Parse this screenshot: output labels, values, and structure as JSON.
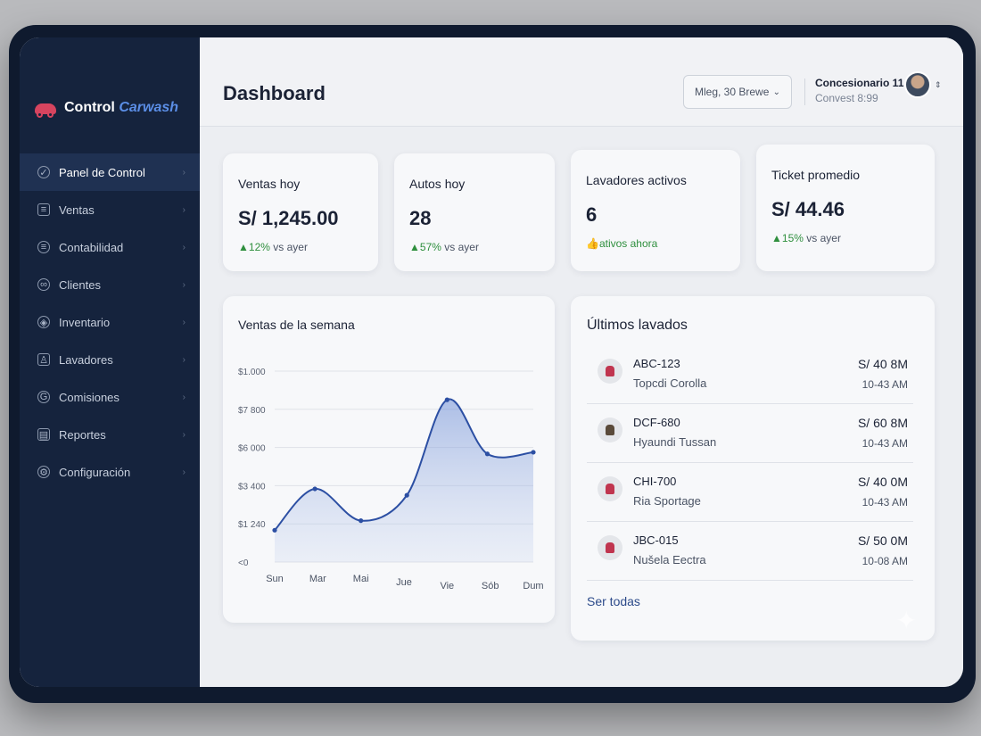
{
  "brand": {
    "name_part1": "Control",
    "name_part2": "Carwash"
  },
  "sidebar": {
    "items": [
      {
        "label": "Panel de Control",
        "icon": "dashboard-icon",
        "glyph": "✓",
        "active": true
      },
      {
        "label": "Ventas",
        "icon": "receipt-icon",
        "glyph": "≡"
      },
      {
        "label": "Contabilidad",
        "icon": "database-icon",
        "glyph": "≡"
      },
      {
        "label": "Clientes",
        "icon": "users-icon",
        "glyph": "∞"
      },
      {
        "label": "Inventario",
        "icon": "box-icon",
        "glyph": "◈"
      },
      {
        "label": "Lavadores",
        "icon": "worker-icon",
        "glyph": "♙"
      },
      {
        "label": "Comisiones",
        "icon": "commission-icon",
        "glyph": "G"
      },
      {
        "label": "Reportes",
        "icon": "report-icon",
        "glyph": "▤"
      },
      {
        "label": "Configuración",
        "icon": "gear-icon",
        "glyph": "⚙"
      }
    ]
  },
  "header": {
    "title": "Dashboard",
    "select_value": "Mleg, 30 Brewe",
    "user_name": "Concesionario 11",
    "user_sub": "Convest 8:99"
  },
  "kpis": [
    {
      "label": "Ventas hoy",
      "value": "S/ 1,245.00",
      "delta_value": "12%",
      "delta_text": " vs ayer",
      "arrow": "▲"
    },
    {
      "label": "Autos hoy",
      "value": "28",
      "delta_value": "57%",
      "delta_text": " vs ayer",
      "arrow": "▲"
    },
    {
      "label": "Lavadores activos",
      "value": "6",
      "delta_value": "ativos ahora",
      "delta_text": "",
      "arrow": "👍"
    },
    {
      "label": "Ticket promedio",
      "value": "S/ 44.46",
      "delta_value": "15%",
      "delta_text": " vs ayer",
      "arrow": "▲"
    }
  ],
  "chart_data": {
    "type": "area",
    "title": "Ventas de la semana",
    "categories": [
      "Sun",
      "Mar",
      "Mai",
      "Jue",
      "Vie",
      "Sób",
      "Dum"
    ],
    "y_tick_labels": [
      "<0",
      "$1 240",
      "$3 400",
      "$6 000",
      "$7 800",
      "$1.000"
    ],
    "x": [
      0,
      0.7,
      1.5,
      2.3,
      3.0,
      3.7,
      4.5
    ],
    "values": [
      1000,
      2300,
      1300,
      2100,
      5100,
      3400,
      3450
    ],
    "ylim": [
      0,
      6000
    ],
    "color": "#2c4fa3",
    "grid": true
  },
  "recent": {
    "title": "Últimos lavados",
    "see_all": "Ser todas",
    "rows": [
      {
        "plate": "ABC-123",
        "model": "Topcdi Corolla",
        "amount": "S/ 40 8M",
        "time": "10-43 AM"
      },
      {
        "plate": "DCF-680",
        "model": "Hyaundi Tussan",
        "amount": "S/ 60 8M",
        "time": "10-43 AM"
      },
      {
        "plate": "CHI-700",
        "model": "Ria Sportage",
        "amount": "S/ 40 0M",
        "time": "10-43 AM"
      },
      {
        "plate": "JBC-015",
        "model": "Nušela Eectra",
        "amount": "S/ 50 0M",
        "time": "10-08 AM"
      }
    ]
  }
}
